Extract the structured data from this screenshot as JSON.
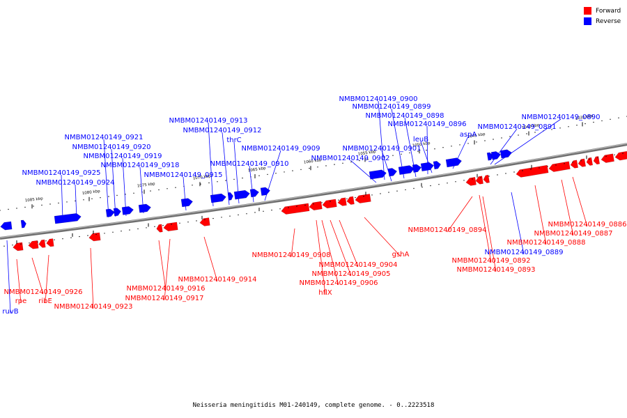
{
  "legend": {
    "forward_label": "Forward",
    "reverse_label": "Reverse",
    "forward_color": "#ff0000",
    "reverse_color": "#0000ff"
  },
  "caption": "Neisseria meningitidis M01-240149, complete genome. - 0..2223518",
  "ruler": {
    "ticks": [
      "1085 kbp",
      "1080 kbp",
      "1075 kbp",
      "1070 kbp",
      "1065 kbp",
      "1060 kbp",
      "1055 kbp",
      "1050 kbp",
      "1045 kbp",
      "1040 kbp",
      "1035 kbp"
    ]
  },
  "genes": {
    "reverse": [
      "ruvB",
      "NMBM01240149_0925",
      "NMBM01240149_0924",
      "NMBM01240149_0921",
      "NMBM01240149_0920",
      "NMBM01240149_0919",
      "NMBM01240149_0918",
      "NMBM01240149_0915",
      "NMBM01240149_0913",
      "NMBM01240149_0912",
      "thrC",
      "NMBM01240149_0910",
      "NMBM01240149_0909",
      "NMBM01240149_0902",
      "NMBM01240149_0901",
      "NMBM01240149_0900",
      "NMBM01240149_0899",
      "NMBM01240149_0898",
      "NMBM01240149_0896",
      "leuB",
      "aspA",
      "NMBM01240149_0891",
      "NMBM01240149_0890",
      "NMBM01240149_0889"
    ],
    "forward": [
      "rpe",
      "NMBM01240149_0926",
      "ribE",
      "NMBM01240149_0923",
      "NMBM01240149_0916",
      "NMBM01240149_0917",
      "NMBM01240149_0914",
      "NMBM01240149_0908",
      "NMBM01240149_0904",
      "NMBM01240149_0905",
      "NMBM01240149_0906",
      "hflX",
      "gshA",
      "NMBM01240149_0894",
      "NMBM01240149_0892",
      "NMBM01240149_0893",
      "NMBM01240149_0888",
      "NMBM01240149_0887",
      "NMBM01240149_0886"
    ]
  }
}
